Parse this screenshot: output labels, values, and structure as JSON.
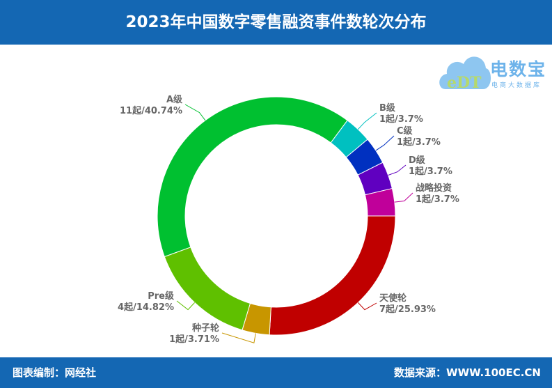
{
  "header": {
    "title": "2023年中国数字零售融资事件数轮次分布"
  },
  "footer": {
    "left": "图表编制：网经社",
    "right": "数据来源：WWW.100EC.CN"
  },
  "logo": {
    "brand": "电数宝",
    "sub": "电商大数据库",
    "mark": "eDT"
  },
  "chart_data": {
    "type": "pie",
    "variant": "donut",
    "unit": "起",
    "slices": [
      {
        "name": "天使轮",
        "value": 7,
        "percent_label": "25.93%",
        "color": "#c00000"
      },
      {
        "name": "种子轮",
        "value": 1,
        "percent_label": "3.71%",
        "color": "#c89600"
      },
      {
        "name": "Pre级",
        "value": 4,
        "percent_label": "14.82%",
        "color": "#5fc000"
      },
      {
        "name": "A级",
        "value": 11,
        "percent_label": "40.74%",
        "color": "#00c030"
      },
      {
        "name": "B级",
        "value": 1,
        "percent_label": "3.7%",
        "color": "#00c0c0"
      },
      {
        "name": "C级",
        "value": 1,
        "percent_label": "3.7%",
        "color": "#0030c0"
      },
      {
        "name": "D级",
        "value": 1,
        "percent_label": "3.7%",
        "color": "#6000c0"
      },
      {
        "name": "战略投资",
        "value": 1,
        "percent_label": "3.7%",
        "color": "#c0009a"
      }
    ]
  }
}
